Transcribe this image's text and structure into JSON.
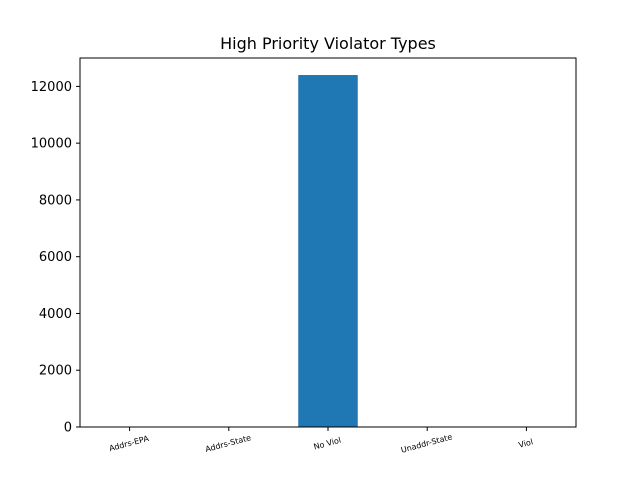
{
  "chart_data": {
    "type": "bar",
    "title": "High Priority Violator Types",
    "xlabel": "",
    "ylabel": "",
    "categories": [
      "Addrs-EPA",
      "Addrs-State",
      "No Viol",
      "Unaddr-State",
      "Viol"
    ],
    "values": [
      0,
      0,
      12400,
      0,
      0
    ],
    "ylim": [
      0,
      13000
    ],
    "yticks": [
      0,
      2000,
      4000,
      6000,
      8000,
      10000,
      12000
    ],
    "xtick_rotation_deg": 15,
    "grid": false,
    "legend": "none",
    "bar_color": "#1f77b4"
  }
}
